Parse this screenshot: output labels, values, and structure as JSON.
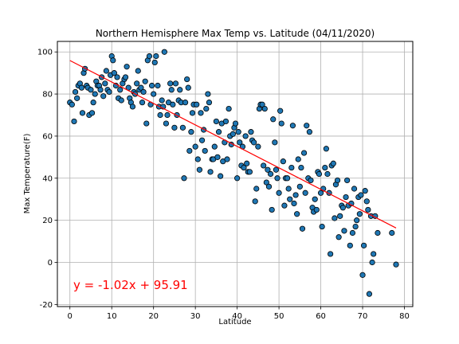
{
  "chart_data": {
    "type": "scatter",
    "title": "Northern Hemisphere Max Temp vs. Latitude (04/11/2020)",
    "xlabel": "Latitude",
    "ylabel": "Max Temperature(F)",
    "xlim": [
      -3,
      82
    ],
    "ylim": [
      -21,
      105
    ],
    "xticks": [
      0,
      10,
      20,
      30,
      40,
      50,
      60,
      70,
      80
    ],
    "yticks": [
      -20,
      0,
      20,
      40,
      60,
      80,
      100
    ],
    "grid": true,
    "colors": {
      "point_fill": "#1f77b4",
      "point_edge": "#000000",
      "line": "#ff0000",
      "equation": "#ff0000",
      "grid": "#b0b0b0"
    },
    "regression": {
      "slope": -1.02,
      "intercept": 95.91,
      "x_range": [
        0,
        78
      ],
      "equation_text": "y = -1.02x + 95.91"
    },
    "points": [
      [
        0,
        76
      ],
      [
        0.5,
        75
      ],
      [
        1,
        67
      ],
      [
        1.3,
        81
      ],
      [
        1.7,
        78
      ],
      [
        2,
        84
      ],
      [
        2.4,
        85
      ],
      [
        2.8,
        83
      ],
      [
        3,
        71
      ],
      [
        3.3,
        90
      ],
      [
        3.6,
        92
      ],
      [
        4,
        84
      ],
      [
        4.3,
        83
      ],
      [
        4.6,
        70
      ],
      [
        5,
        82
      ],
      [
        5.3,
        71
      ],
      [
        5.6,
        76
      ],
      [
        6,
        80
      ],
      [
        6.3,
        86
      ],
      [
        6.6,
        84
      ],
      [
        7,
        84
      ],
      [
        7.3,
        82
      ],
      [
        7.6,
        88
      ],
      [
        8,
        79
      ],
      [
        8.4,
        85
      ],
      [
        8.7,
        91
      ],
      [
        9,
        82
      ],
      [
        9.4,
        81
      ],
      [
        9.7,
        89
      ],
      [
        10,
        98
      ],
      [
        10.3,
        96
      ],
      [
        10.6,
        90
      ],
      [
        11,
        84
      ],
      [
        11.3,
        88
      ],
      [
        11.6,
        78
      ],
      [
        12,
        82
      ],
      [
        12.3,
        77
      ],
      [
        12.6,
        85
      ],
      [
        13,
        87
      ],
      [
        13.3,
        88
      ],
      [
        13.6,
        93
      ],
      [
        14,
        83
      ],
      [
        14.3,
        78
      ],
      [
        14.6,
        76
      ],
      [
        15,
        74
      ],
      [
        15.3,
        81
      ],
      [
        15.6,
        80
      ],
      [
        16,
        85
      ],
      [
        16.3,
        91
      ],
      [
        16.6,
        82
      ],
      [
        17,
        83
      ],
      [
        17.3,
        76
      ],
      [
        17.6,
        81
      ],
      [
        18,
        86
      ],
      [
        18.3,
        66
      ],
      [
        18.6,
        96
      ],
      [
        19,
        98
      ],
      [
        19.3,
        75
      ],
      [
        19.6,
        84
      ],
      [
        20,
        80
      ],
      [
        20.3,
        95
      ],
      [
        20.6,
        98
      ],
      [
        21,
        84
      ],
      [
        21.3,
        74
      ],
      [
        21.6,
        70
      ],
      [
        22,
        77
      ],
      [
        22.3,
        74
      ],
      [
        22.6,
        100
      ],
      [
        23,
        66
      ],
      [
        23.3,
        70
      ],
      [
        23.6,
        76
      ],
      [
        24,
        85
      ],
      [
        24.3,
        82
      ],
      [
        24.6,
        75
      ],
      [
        25,
        64
      ],
      [
        25.3,
        85
      ],
      [
        25.6,
        70
      ],
      [
        26,
        77
      ],
      [
        26.3,
        82
      ],
      [
        26.6,
        76
      ],
      [
        27,
        64
      ],
      [
        27.3,
        40
      ],
      [
        27.6,
        76
      ],
      [
        28,
        87
      ],
      [
        28.3,
        83
      ],
      [
        28.6,
        53
      ],
      [
        29,
        62
      ],
      [
        29.3,
        71
      ],
      [
        29.6,
        75
      ],
      [
        30,
        55
      ],
      [
        30.3,
        75
      ],
      [
        30.6,
        49
      ],
      [
        31,
        44
      ],
      [
        31.3,
        71
      ],
      [
        31.6,
        58
      ],
      [
        32,
        63
      ],
      [
        32.3,
        53
      ],
      [
        32.6,
        73
      ],
      [
        33,
        80
      ],
      [
        33.3,
        76
      ],
      [
        33.6,
        43
      ],
      [
        34,
        49
      ],
      [
        34.3,
        49
      ],
      [
        34.6,
        55
      ],
      [
        35,
        67
      ],
      [
        35.3,
        50
      ],
      [
        35.6,
        62
      ],
      [
        36,
        41
      ],
      [
        36.3,
        66
      ],
      [
        36.6,
        48
      ],
      [
        37,
        57
      ],
      [
        37.3,
        67
      ],
      [
        37.6,
        49
      ],
      [
        38,
        73
      ],
      [
        38.3,
        60
      ],
      [
        38.6,
        56
      ],
      [
        39,
        61
      ],
      [
        39.3,
        64
      ],
      [
        39.6,
        66
      ],
      [
        40,
        40
      ],
      [
        40.3,
        62
      ],
      [
        40.6,
        57
      ],
      [
        41,
        46
      ],
      [
        41.3,
        55
      ],
      [
        41.6,
        45
      ],
      [
        42,
        60
      ],
      [
        42.3,
        47
      ],
      [
        42.6,
        43
      ],
      [
        43,
        43
      ],
      [
        43.3,
        62
      ],
      [
        43.6,
        58
      ],
      [
        44,
        57
      ],
      [
        44.3,
        29
      ],
      [
        44.6,
        35
      ],
      [
        45,
        55
      ],
      [
        45.3,
        73
      ],
      [
        45.6,
        75
      ],
      [
        46,
        75
      ],
      [
        46.3,
        46
      ],
      [
        46.6,
        73
      ],
      [
        47,
        38
      ],
      [
        47.3,
        44
      ],
      [
        47.6,
        36
      ],
      [
        48,
        42
      ],
      [
        48.3,
        25
      ],
      [
        48.6,
        68
      ],
      [
        49,
        57
      ],
      [
        49.3,
        44
      ],
      [
        49.6,
        40
      ],
      [
        50,
        33
      ],
      [
        50.3,
        72
      ],
      [
        50.6,
        66
      ],
      [
        51,
        48
      ],
      [
        51.3,
        27
      ],
      [
        51.6,
        40
      ],
      [
        52,
        40
      ],
      [
        52.3,
        35
      ],
      [
        52.6,
        30
      ],
      [
        53,
        45
      ],
      [
        53.3,
        65
      ],
      [
        53.6,
        28
      ],
      [
        54,
        32
      ],
      [
        54.3,
        23
      ],
      [
        54.6,
        49
      ],
      [
        55,
        36
      ],
      [
        55.3,
        45
      ],
      [
        55.6,
        16
      ],
      [
        56,
        52
      ],
      [
        56.3,
        33
      ],
      [
        56.6,
        65
      ],
      [
        57,
        40
      ],
      [
        57.3,
        62
      ],
      [
        57.6,
        39
      ],
      [
        58,
        26
      ],
      [
        58.3,
        24
      ],
      [
        58.6,
        30
      ],
      [
        59,
        25
      ],
      [
        59.3,
        43
      ],
      [
        59.6,
        42
      ],
      [
        60,
        33
      ],
      [
        60.3,
        17
      ],
      [
        60.6,
        35
      ],
      [
        61,
        45
      ],
      [
        61.3,
        54
      ],
      [
        61.6,
        42
      ],
      [
        62,
        33
      ],
      [
        62.3,
        4
      ],
      [
        62.6,
        46
      ],
      [
        63,
        47
      ],
      [
        63.3,
        21
      ],
      [
        63.6,
        37
      ],
      [
        64,
        39
      ],
      [
        64.3,
        12
      ],
      [
        64.6,
        22
      ],
      [
        65,
        27
      ],
      [
        65.3,
        26
      ],
      [
        65.6,
        15
      ],
      [
        66,
        31
      ],
      [
        66.3,
        39
      ],
      [
        66.6,
        27
      ],
      [
        67,
        8
      ],
      [
        67.3,
        28
      ],
      [
        67.6,
        14
      ],
      [
        68,
        35
      ],
      [
        68.3,
        17
      ],
      [
        68.6,
        20
      ],
      [
        69,
        31
      ],
      [
        69.3,
        23
      ],
      [
        69.6,
        32
      ],
      [
        70,
        -6
      ],
      [
        70.3,
        8
      ],
      [
        70.6,
        34
      ],
      [
        71,
        29
      ],
      [
        71.3,
        25
      ],
      [
        71.6,
        -15
      ],
      [
        72,
        22
      ],
      [
        72.3,
        0
      ],
      [
        72.6,
        4
      ],
      [
        73,
        22
      ],
      [
        73.6,
        14
      ],
      [
        77,
        14
      ],
      [
        78,
        -1
      ]
    ]
  }
}
